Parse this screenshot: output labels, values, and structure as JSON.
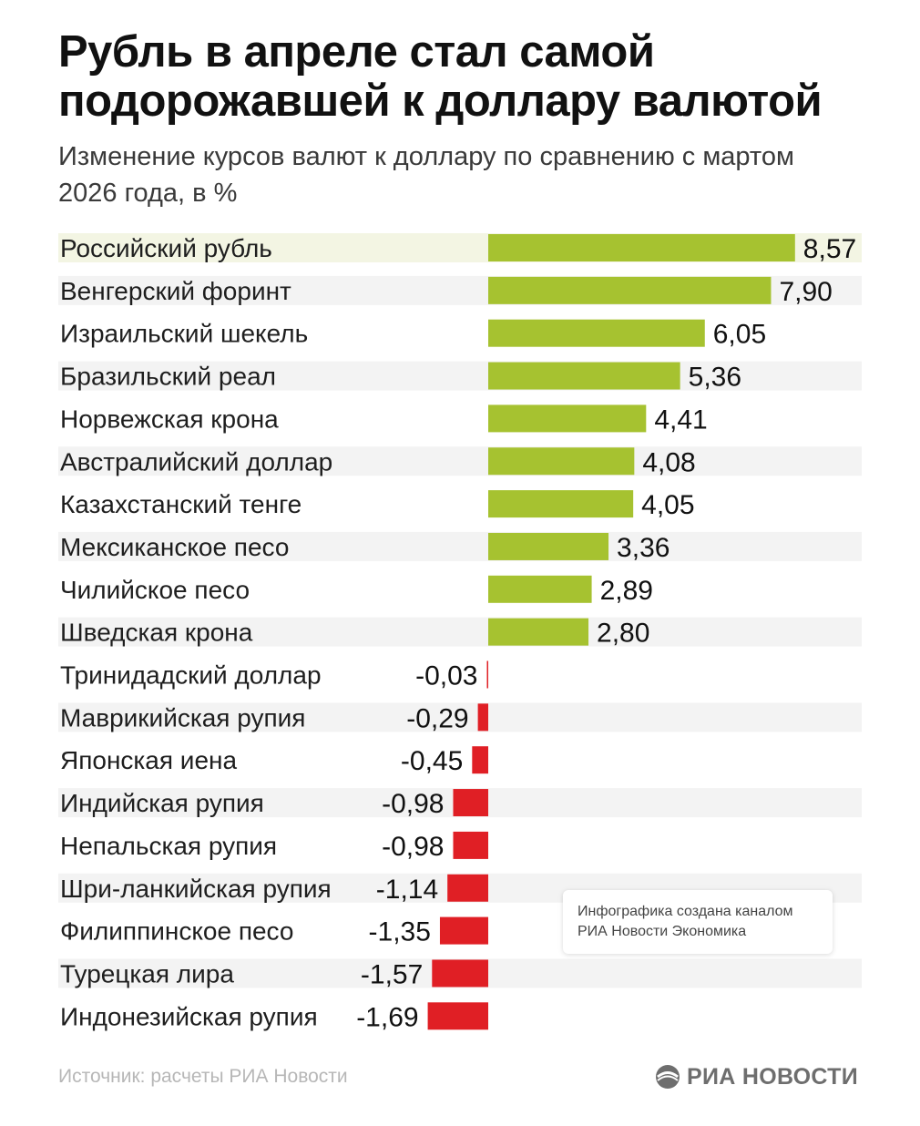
{
  "header": {
    "title_line1": "Рубль в апреле стал самой",
    "title_line2": "подорожавшей к доллару валютой",
    "subtitle_line1": "Изменение курсов валют к доллару по сравнению с мартом",
    "subtitle_line2": "2026 года, в %"
  },
  "chart_data": {
    "type": "bar",
    "orientation": "horizontal",
    "title": "Рубль в апреле стал самой подорожавшей к доллару валютой",
    "subtitle": "Изменение курсов валют к доллару по сравнению с мартом 2026 года, в %",
    "categories": [
      "Российский рубль",
      "Венгерский форинт",
      "Израильский шекель",
      "Бразильский реал",
      "Норвежская крона",
      "Австралийский доллар",
      "Казахстанский тенге",
      "Мексиканское песо",
      "Чилийское песо",
      "Шведская крона",
      "Тринидадский доллар",
      "Маврикийская рупия",
      "Японская иена",
      "Индийская рупия",
      "Непальская рупия",
      "Шри-ланкийская рупия",
      "Филиппинское песо",
      "Турецкая лира",
      "Индонезийская рупия"
    ],
    "values": [
      8.57,
      7.9,
      6.05,
      5.36,
      4.41,
      4.08,
      4.05,
      3.36,
      2.89,
      2.8,
      -0.03,
      -0.29,
      -0.45,
      -0.98,
      -0.98,
      -1.14,
      -1.35,
      -1.57,
      -1.69
    ],
    "value_labels": [
      "8,57",
      "7,90",
      "6,05",
      "5,36",
      "4,41",
      "4,08",
      "4,05",
      "3,36",
      "2,89",
      "2,80",
      "-0,03",
      "-0,29",
      "-0,45",
      "-0,98",
      "-0,98",
      "-1,14",
      "-1,35",
      "-1,57",
      "-1,69"
    ],
    "highlighted_category": "Российский рубль",
    "colors": {
      "positive": "#a6c230",
      "negative": "#e01f25",
      "row_stripe": "#f3f3f3",
      "highlight_row": "#f3f5e3"
    },
    "grid": false,
    "legend": "none"
  },
  "note": {
    "line1": "Инфографика создана каналом",
    "line2": "РИА Новости Экономика"
  },
  "footer": {
    "source": "Источник: расчеты РИА Новости",
    "logo_text": "РИА НОВОСТИ",
    "logo_icon": "ria-novosti-logo-icon"
  }
}
